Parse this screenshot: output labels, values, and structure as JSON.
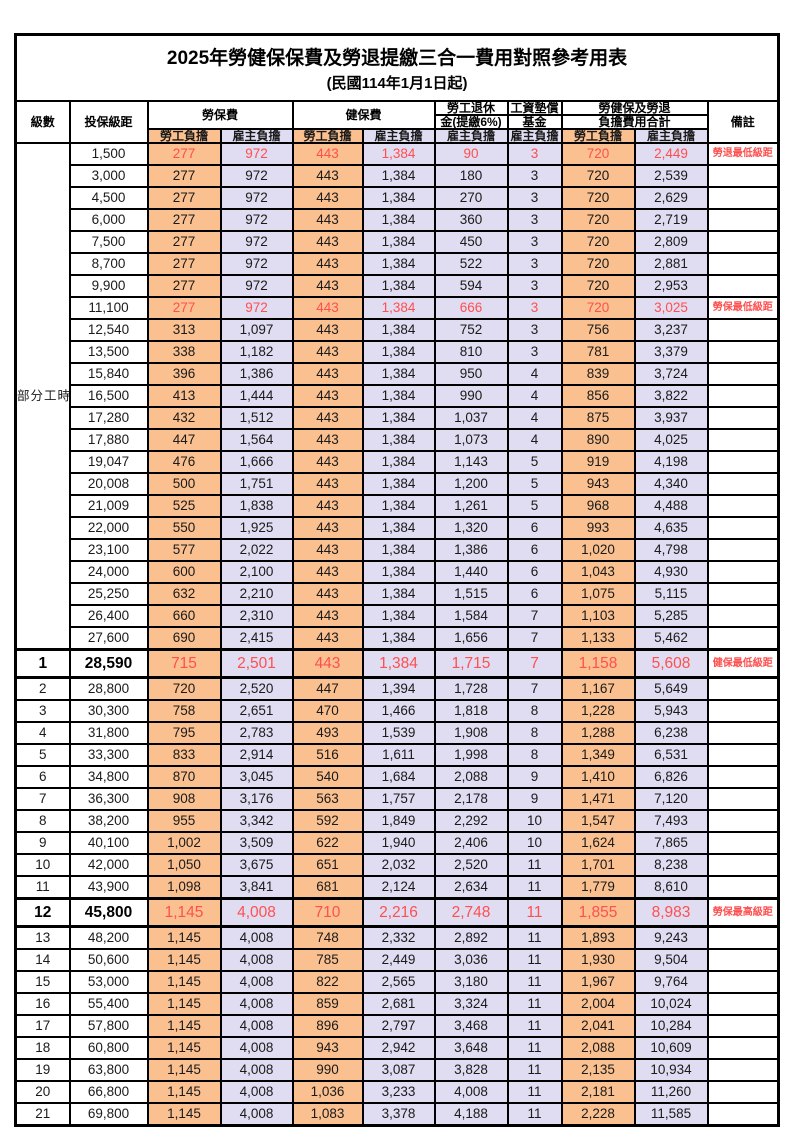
{
  "title": "2025年勞健保保費及勞退提繳三合一費用對照參考用表",
  "subtitle": "(民國114年1月1日起)",
  "headers": {
    "level": "級數",
    "salary": "投保級距",
    "labor_ins": "勞保費",
    "health_ins": "健保費",
    "pension_line1": "勞工退休",
    "pension_line2": "金(提繳6%)",
    "wage_fund_line1": "工資墊償",
    "wage_fund_line2": "基金",
    "total_line1": "勞健保及勞退",
    "total_line2": "負擔費用合計",
    "remark": "備註",
    "employee": "勞工負擔",
    "employer": "雇主負擔"
  },
  "part_time_label": "部分工時",
  "colors": {
    "employee_fill": "#FAC090",
    "employer_fill": "#E0DCF1",
    "highlight_text": "#FF4F4F"
  },
  "row_fields": [
    "level",
    "salary",
    "labor_employee",
    "labor_employer",
    "health_employee",
    "health_employer",
    "pension_employer",
    "wage_fund_employer",
    "total_employee",
    "total_employer",
    "remark",
    "highlight",
    "emphasis"
  ],
  "rows": [
    [
      "",
      "1,500",
      "277",
      "972",
      "443",
      "1,384",
      "90",
      "3",
      "720",
      "2,449",
      "勞退最低級距",
      true,
      false
    ],
    [
      "",
      "3,000",
      "277",
      "972",
      "443",
      "1,384",
      "180",
      "3",
      "720",
      "2,539",
      "",
      false,
      false
    ],
    [
      "",
      "4,500",
      "277",
      "972",
      "443",
      "1,384",
      "270",
      "3",
      "720",
      "2,629",
      "",
      false,
      false
    ],
    [
      "",
      "6,000",
      "277",
      "972",
      "443",
      "1,384",
      "360",
      "3",
      "720",
      "2,719",
      "",
      false,
      false
    ],
    [
      "",
      "7,500",
      "277",
      "972",
      "443",
      "1,384",
      "450",
      "3",
      "720",
      "2,809",
      "",
      false,
      false
    ],
    [
      "",
      "8,700",
      "277",
      "972",
      "443",
      "1,384",
      "522",
      "3",
      "720",
      "2,881",
      "",
      false,
      false
    ],
    [
      "",
      "9,900",
      "277",
      "972",
      "443",
      "1,384",
      "594",
      "3",
      "720",
      "2,953",
      "",
      false,
      false
    ],
    [
      "",
      "11,100",
      "277",
      "972",
      "443",
      "1,384",
      "666",
      "3",
      "720",
      "3,025",
      "勞保最低級距",
      true,
      false
    ],
    [
      "",
      "12,540",
      "313",
      "1,097",
      "443",
      "1,384",
      "752",
      "3",
      "756",
      "3,237",
      "",
      false,
      false
    ],
    [
      "",
      "13,500",
      "338",
      "1,182",
      "443",
      "1,384",
      "810",
      "3",
      "781",
      "3,379",
      "",
      false,
      false
    ],
    [
      "",
      "15,840",
      "396",
      "1,386",
      "443",
      "1,384",
      "950",
      "4",
      "839",
      "3,724",
      "",
      false,
      false
    ],
    [
      "",
      "16,500",
      "413",
      "1,444",
      "443",
      "1,384",
      "990",
      "4",
      "856",
      "3,822",
      "",
      false,
      false
    ],
    [
      "",
      "17,280",
      "432",
      "1,512",
      "443",
      "1,384",
      "1,037",
      "4",
      "875",
      "3,937",
      "",
      false,
      false
    ],
    [
      "",
      "17,880",
      "447",
      "1,564",
      "443",
      "1,384",
      "1,073",
      "4",
      "890",
      "4,025",
      "",
      false,
      false
    ],
    [
      "",
      "19,047",
      "476",
      "1,666",
      "443",
      "1,384",
      "1,143",
      "5",
      "919",
      "4,198",
      "",
      false,
      false
    ],
    [
      "",
      "20,008",
      "500",
      "1,751",
      "443",
      "1,384",
      "1,200",
      "5",
      "943",
      "4,340",
      "",
      false,
      false
    ],
    [
      "",
      "21,009",
      "525",
      "1,838",
      "443",
      "1,384",
      "1,261",
      "5",
      "968",
      "4,488",
      "",
      false,
      false
    ],
    [
      "",
      "22,000",
      "550",
      "1,925",
      "443",
      "1,384",
      "1,320",
      "6",
      "993",
      "4,635",
      "",
      false,
      false
    ],
    [
      "",
      "23,100",
      "577",
      "2,022",
      "443",
      "1,384",
      "1,386",
      "6",
      "1,020",
      "4,798",
      "",
      false,
      false
    ],
    [
      "",
      "24,000",
      "600",
      "2,100",
      "443",
      "1,384",
      "1,440",
      "6",
      "1,043",
      "4,930",
      "",
      false,
      false
    ],
    [
      "",
      "25,250",
      "632",
      "2,210",
      "443",
      "1,384",
      "1,515",
      "6",
      "1,075",
      "5,115",
      "",
      false,
      false
    ],
    [
      "",
      "26,400",
      "660",
      "2,310",
      "443",
      "1,384",
      "1,584",
      "7",
      "1,103",
      "5,285",
      "",
      false,
      false
    ],
    [
      "",
      "27,600",
      "690",
      "2,415",
      "443",
      "1,384",
      "1,656",
      "7",
      "1,133",
      "5,462",
      "",
      false,
      false
    ],
    [
      "1",
      "28,590",
      "715",
      "2,501",
      "443",
      "1,384",
      "1,715",
      "7",
      "1,158",
      "5,608",
      "健保最低級距",
      true,
      true
    ],
    [
      "2",
      "28,800",
      "720",
      "2,520",
      "447",
      "1,394",
      "1,728",
      "7",
      "1,167",
      "5,649",
      "",
      false,
      false
    ],
    [
      "3",
      "30,300",
      "758",
      "2,651",
      "470",
      "1,466",
      "1,818",
      "8",
      "1,228",
      "5,943",
      "",
      false,
      false
    ],
    [
      "4",
      "31,800",
      "795",
      "2,783",
      "493",
      "1,539",
      "1,908",
      "8",
      "1,288",
      "6,238",
      "",
      false,
      false
    ],
    [
      "5",
      "33,300",
      "833",
      "2,914",
      "516",
      "1,611",
      "1,998",
      "8",
      "1,349",
      "6,531",
      "",
      false,
      false
    ],
    [
      "6",
      "34,800",
      "870",
      "3,045",
      "540",
      "1,684",
      "2,088",
      "9",
      "1,410",
      "6,826",
      "",
      false,
      false
    ],
    [
      "7",
      "36,300",
      "908",
      "3,176",
      "563",
      "1,757",
      "2,178",
      "9",
      "1,471",
      "7,120",
      "",
      false,
      false
    ],
    [
      "8",
      "38,200",
      "955",
      "3,342",
      "592",
      "1,849",
      "2,292",
      "10",
      "1,547",
      "7,493",
      "",
      false,
      false
    ],
    [
      "9",
      "40,100",
      "1,002",
      "3,509",
      "622",
      "1,940",
      "2,406",
      "10",
      "1,624",
      "7,865",
      "",
      false,
      false
    ],
    [
      "10",
      "42,000",
      "1,050",
      "3,675",
      "651",
      "2,032",
      "2,520",
      "11",
      "1,701",
      "8,238",
      "",
      false,
      false
    ],
    [
      "11",
      "43,900",
      "1,098",
      "3,841",
      "681",
      "2,124",
      "2,634",
      "11",
      "1,779",
      "8,610",
      "",
      false,
      false
    ],
    [
      "12",
      "45,800",
      "1,145",
      "4,008",
      "710",
      "2,216",
      "2,748",
      "11",
      "1,855",
      "8,983",
      "勞保最高級距",
      true,
      true
    ],
    [
      "13",
      "48,200",
      "1,145",
      "4,008",
      "748",
      "2,332",
      "2,892",
      "11",
      "1,893",
      "9,243",
      "",
      false,
      false
    ],
    [
      "14",
      "50,600",
      "1,145",
      "4,008",
      "785",
      "2,449",
      "3,036",
      "11",
      "1,930",
      "9,504",
      "",
      false,
      false
    ],
    [
      "15",
      "53,000",
      "1,145",
      "4,008",
      "822",
      "2,565",
      "3,180",
      "11",
      "1,967",
      "9,764",
      "",
      false,
      false
    ],
    [
      "16",
      "55,400",
      "1,145",
      "4,008",
      "859",
      "2,681",
      "3,324",
      "11",
      "2,004",
      "10,024",
      "",
      false,
      false
    ],
    [
      "17",
      "57,800",
      "1,145",
      "4,008",
      "896",
      "2,797",
      "3,468",
      "11",
      "2,041",
      "10,284",
      "",
      false,
      false
    ],
    [
      "18",
      "60,800",
      "1,145",
      "4,008",
      "943",
      "2,942",
      "3,648",
      "11",
      "2,088",
      "10,609",
      "",
      false,
      false
    ],
    [
      "19",
      "63,800",
      "1,145",
      "4,008",
      "990",
      "3,087",
      "3,828",
      "11",
      "2,135",
      "10,934",
      "",
      false,
      false
    ],
    [
      "20",
      "66,800",
      "1,145",
      "4,008",
      "1,036",
      "3,233",
      "4,008",
      "11",
      "2,181",
      "11,260",
      "",
      false,
      false
    ],
    [
      "21",
      "69,800",
      "1,145",
      "4,008",
      "1,083",
      "3,378",
      "4,188",
      "11",
      "2,228",
      "11,585",
      "",
      false,
      false
    ]
  ]
}
